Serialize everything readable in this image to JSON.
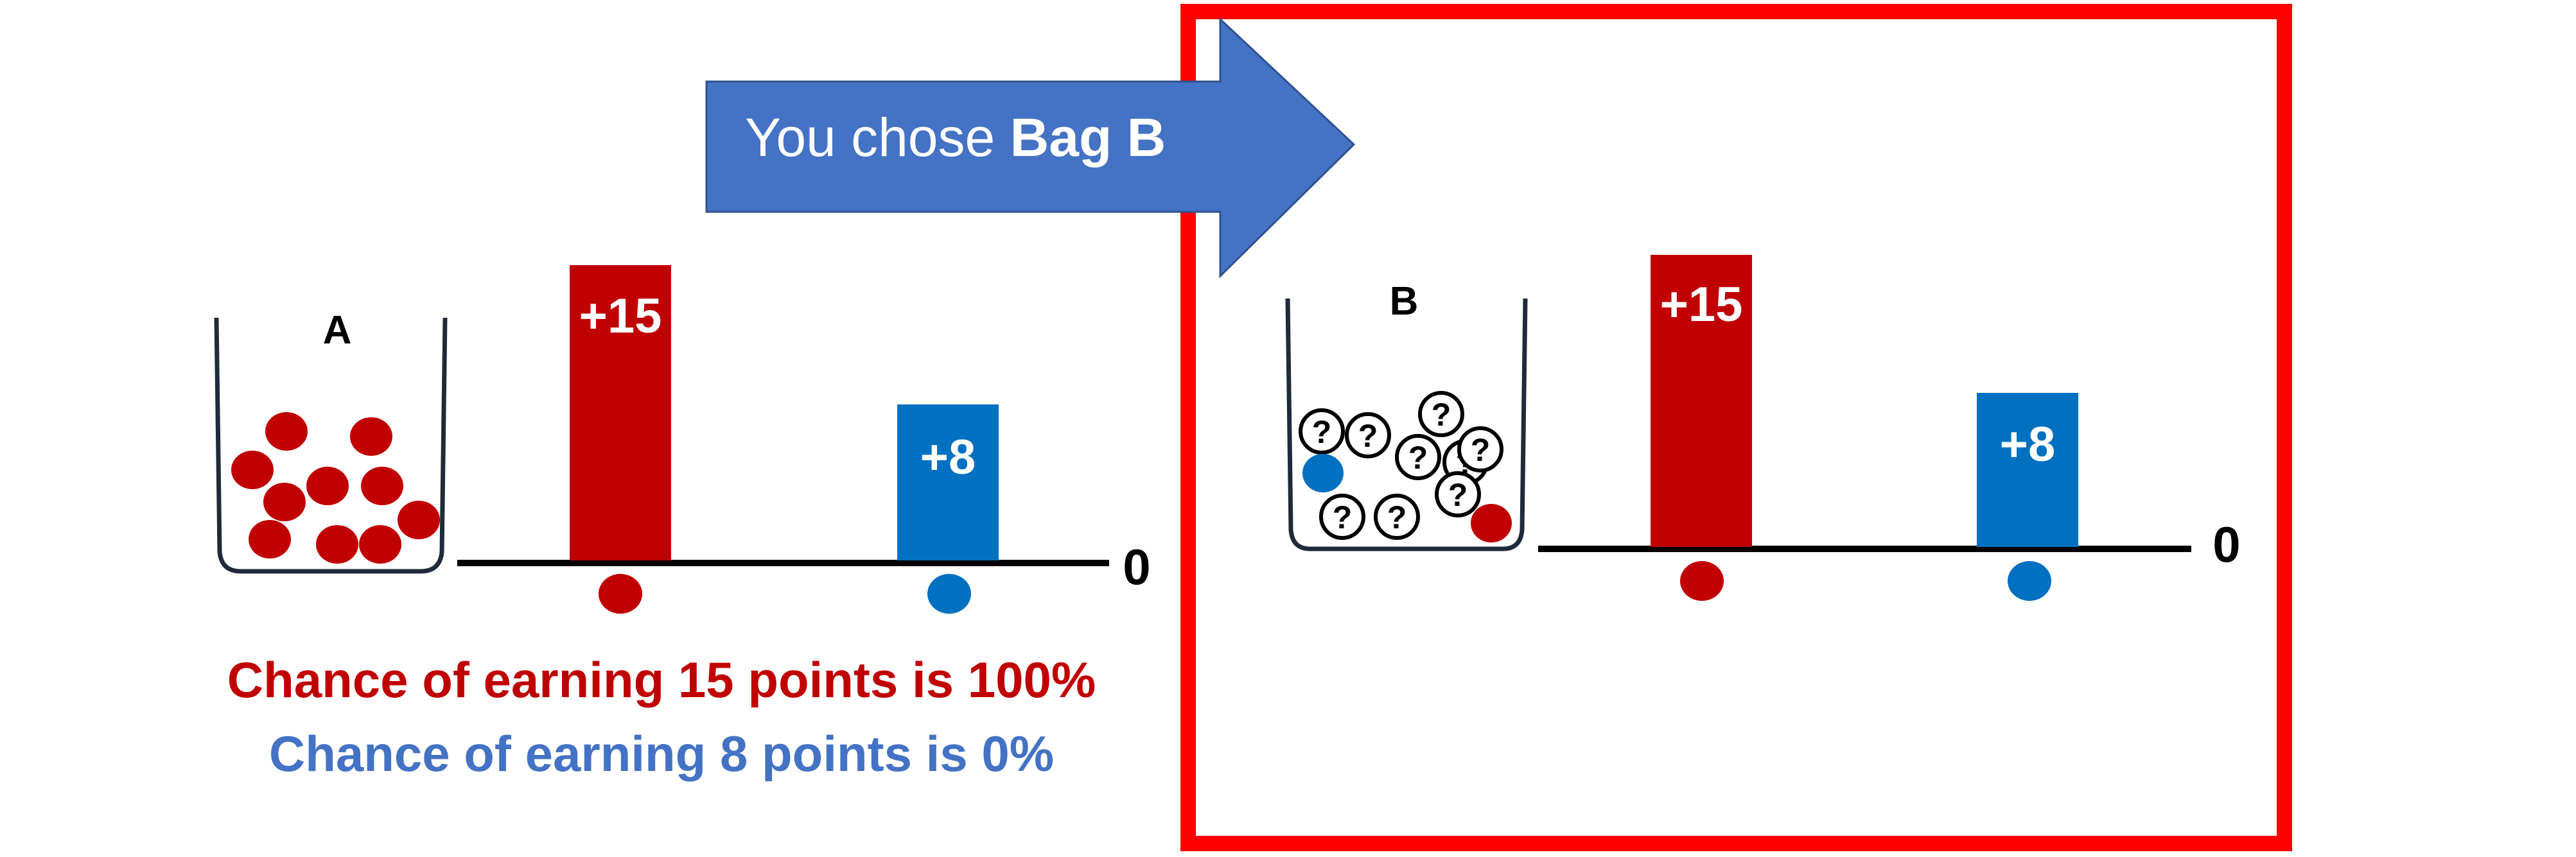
{
  "arrow": {
    "prefix": "You chose ",
    "choice": "Bag B"
  },
  "colors": {
    "red": "#c00000",
    "blue": "#0070c0",
    "arrow": "#4472c4",
    "frame": "#ff0000",
    "text_blue": "#4472c4"
  },
  "bags": [
    {
      "label": "A",
      "contents": "10 red balls",
      "bars": [
        {
          "label": "+15",
          "value": 15,
          "color": "red",
          "ball": "red"
        },
        {
          "label": "+8",
          "value": 8,
          "color": "blue",
          "ball": "blue"
        }
      ],
      "baseline_label": "0"
    },
    {
      "label": "B",
      "contents": "1 blue ball, 1 red ball, 9 unknown balls",
      "unknown_mark": "?",
      "bars": [
        {
          "label": "+15",
          "value": 15,
          "color": "red",
          "ball": "red"
        },
        {
          "label": "+8",
          "value": 8,
          "color": "blue",
          "ball": "blue"
        }
      ],
      "baseline_label": "0"
    }
  ],
  "probabilities": {
    "red_text": "Chance of earning 15 points is 100%",
    "blue_text": "Chance of earning 8 points is 0%"
  }
}
